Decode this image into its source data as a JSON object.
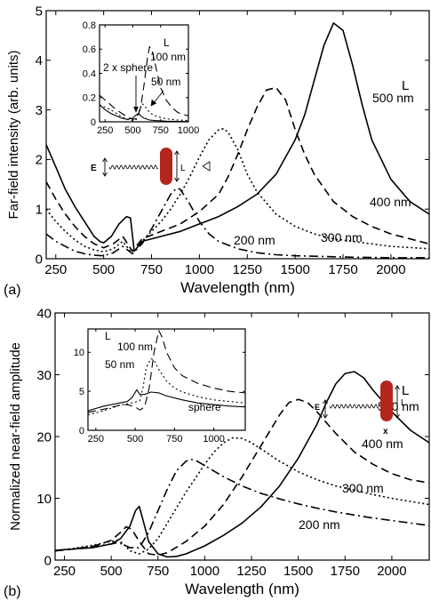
{
  "chart_data": [
    {
      "type": "line",
      "panel_label": "(a)",
      "xlabel": "Wavelength (nm)",
      "ylabel": "Far-field intensity (arb. units)",
      "xlim": [
        200,
        2200
      ],
      "ylim": [
        0,
        5
      ],
      "xticks": [
        "250",
        "500",
        "750",
        "1000",
        "1250",
        "1500",
        "1750",
        "2000"
      ],
      "yticks": [
        "0",
        "1",
        "2",
        "3",
        "4",
        "5"
      ],
      "legend_header": "L",
      "series": [
        {
          "name": "500 nm",
          "style": "solid",
          "x": [
            200,
            250,
            300,
            350,
            400,
            450,
            480,
            500,
            540,
            580,
            620,
            640,
            660,
            700,
            800,
            900,
            1000,
            1100,
            1200,
            1300,
            1400,
            1500,
            1550,
            1600,
            1650,
            1700,
            1750,
            1800,
            1850,
            1900,
            2000,
            2100,
            2200
          ],
          "y": [
            2.3,
            1.85,
            1.4,
            1.05,
            0.75,
            0.45,
            0.35,
            0.32,
            0.45,
            0.7,
            0.85,
            0.82,
            0.15,
            0.35,
            0.45,
            0.55,
            0.7,
            0.85,
            1.05,
            1.3,
            1.7,
            2.4,
            2.9,
            3.6,
            4.3,
            4.75,
            4.6,
            3.9,
            3.1,
            2.4,
            1.6,
            1.15,
            0.9
          ]
        },
        {
          "name": "400 nm",
          "style": "dashed",
          "x": [
            200,
            250,
            300,
            350,
            400,
            450,
            500,
            550,
            600,
            650,
            700,
            800,
            900,
            1000,
            1100,
            1150,
            1200,
            1250,
            1300,
            1350,
            1400,
            1450,
            1500,
            1550,
            1600,
            1700,
            1800,
            1900,
            2000,
            2100,
            2200
          ],
          "y": [
            1.55,
            1.2,
            0.9,
            0.65,
            0.45,
            0.3,
            0.22,
            0.3,
            0.45,
            0.15,
            0.4,
            0.55,
            0.7,
            0.95,
            1.3,
            1.65,
            2.1,
            2.6,
            3.05,
            3.4,
            3.45,
            3.2,
            2.6,
            2.1,
            1.7,
            1.15,
            0.85,
            0.65,
            0.5,
            0.4,
            0.3
          ]
        },
        {
          "name": "300 nm",
          "style": "dotted",
          "x": [
            200,
            250,
            300,
            350,
            400,
            450,
            500,
            550,
            600,
            650,
            700,
            750,
            800,
            850,
            900,
            950,
            1000,
            1050,
            1100,
            1125,
            1150,
            1200,
            1250,
            1300,
            1400,
            1500,
            1600,
            1700,
            1800,
            2000,
            2200
          ],
          "y": [
            1.0,
            0.75,
            0.55,
            0.38,
            0.25,
            0.18,
            0.14,
            0.2,
            0.35,
            0.1,
            0.35,
            0.55,
            0.75,
            1.0,
            1.3,
            1.65,
            2.05,
            2.4,
            2.6,
            2.62,
            2.55,
            2.2,
            1.7,
            1.35,
            0.9,
            0.65,
            0.5,
            0.4,
            0.35,
            0.25,
            0.2
          ]
        },
        {
          "name": "200 nm",
          "style": "dashdot",
          "x": [
            200,
            250,
            300,
            350,
            400,
            450,
            500,
            550,
            600,
            650,
            700,
            750,
            800,
            850,
            880,
            900,
            950,
            1000,
            1050,
            1100,
            1200,
            1300,
            1400,
            1500,
            1600,
            1700,
            1800,
            2000,
            2200
          ],
          "y": [
            0.5,
            0.35,
            0.25,
            0.15,
            0.1,
            0.07,
            0.06,
            0.12,
            0.25,
            0.1,
            0.3,
            0.6,
            0.95,
            1.3,
            1.42,
            1.4,
            1.1,
            0.75,
            0.5,
            0.35,
            0.2,
            0.12,
            0.08,
            0.06,
            0.05,
            0.04,
            0.03,
            0.02,
            0.02
          ]
        }
      ],
      "annotations": {
        "E": "E",
        "L": "L"
      },
      "inset": {
        "xlim": [
          200,
          1000
        ],
        "ylim": [
          0,
          0.8
        ],
        "xticks": [
          "250",
          "500",
          "750",
          "1000"
        ],
        "yticks": [
          "0",
          "0.2",
          "0.4",
          "0.6",
          "0.8"
        ],
        "legend_header": "L",
        "labels": {
          "sphere": "2 x sphere",
          "l100": "100 nm",
          "l50": "50 nm"
        },
        "series": [
          {
            "name": "100 nm",
            "style": "dashed",
            "x": [
              200,
              250,
              300,
              350,
              400,
              450,
              500,
              540,
              570,
              600,
              630,
              650,
              670,
              700,
              750,
              800,
              850,
              900,
              950,
              1000
            ],
            "y": [
              0.22,
              0.18,
              0.14,
              0.1,
              0.07,
              0.04,
              0.02,
              0.03,
              0.12,
              0.3,
              0.52,
              0.62,
              0.6,
              0.48,
              0.28,
              0.18,
              0.12,
              0.08,
              0.06,
              0.05
            ]
          },
          {
            "name": "50 nm",
            "style": "dotted",
            "x": [
              200,
              250,
              300,
              350,
              400,
              450,
              500,
              530,
              560,
              580,
              600,
              630,
              660,
              700,
              750,
              800,
              850,
              900,
              1000
            ],
            "y": [
              0.14,
              0.12,
              0.1,
              0.07,
              0.04,
              0.02,
              0.01,
              0.02,
              0.1,
              0.15,
              0.14,
              0.1,
              0.07,
              0.05,
              0.035,
              0.025,
              0.02,
              0.015,
              0.01
            ]
          },
          {
            "name": "2 x sphere",
            "style": "solid",
            "x": [
              200,
              250,
              300,
              350,
              400,
              450,
              500,
              520,
              550,
              570,
              600,
              650,
              700,
              800,
              900,
              1000
            ],
            "y": [
              0.14,
              0.1,
              0.07,
              0.05,
              0.03,
              0.02,
              0.03,
              0.05,
              0.07,
              0.05,
              0.03,
              0.015,
              0.01,
              0.005,
              0.003,
              0.002
            ]
          }
        ]
      }
    },
    {
      "type": "line",
      "panel_label": "(b)",
      "xlabel": "Wavelength (nm)",
      "ylabel": "Normalized near-field amplitude",
      "xlim": [
        200,
        2200
      ],
      "ylim": [
        0,
        40
      ],
      "xticks": [
        "250",
        "500",
        "750",
        "1000",
        "1250",
        "1500",
        "1750",
        "2000"
      ],
      "yticks": [
        "0",
        "10",
        "20",
        "30",
        "40"
      ],
      "legend_header": "L",
      "series": [
        {
          "name": "500 nm",
          "style": "solid",
          "x": [
            200,
            300,
            400,
            500,
            550,
            600,
            630,
            650,
            670,
            700,
            750,
            800,
            850,
            900,
            1000,
            1100,
            1200,
            1300,
            1400,
            1500,
            1600,
            1650,
            1700,
            1750,
            1800,
            1850,
            1900,
            2000,
            2100,
            2200
          ],
          "y": [
            1.6,
            1.8,
            2.0,
            2.6,
            3.5,
            5.5,
            8.0,
            8.7,
            6.5,
            3.0,
            1.0,
            0.5,
            0.6,
            1.0,
            2.3,
            4.0,
            6.0,
            8.6,
            12,
            16.5,
            22,
            25.5,
            28.5,
            30.2,
            30.5,
            29.5,
            27.5,
            24,
            21,
            19
          ]
        },
        {
          "name": "400 nm",
          "style": "dashed",
          "x": [
            200,
            300,
            400,
            500,
            550,
            580,
            610,
            650,
            700,
            750,
            800,
            900,
            1000,
            1100,
            1200,
            1300,
            1400,
            1450,
            1500,
            1550,
            1600,
            1700,
            1800,
            1900,
            2000,
            2100,
            2200
          ],
          "y": [
            1.5,
            1.8,
            2.2,
            3.2,
            4.5,
            5.4,
            5.0,
            3.0,
            1.0,
            0.8,
            1.2,
            3.0,
            5.5,
            9.0,
            13.5,
            18.5,
            23.5,
            25.5,
            26.0,
            25.5,
            24,
            20.5,
            17.5,
            15.5,
            14,
            13,
            12.5
          ]
        },
        {
          "name": "300 nm",
          "style": "dotted",
          "x": [
            200,
            300,
            400,
            500,
            530,
            560,
            600,
            650,
            700,
            750,
            800,
            900,
            1000,
            1050,
            1100,
            1150,
            1200,
            1250,
            1300,
            1400,
            1500,
            1600,
            1700,
            1800,
            1900,
            2000,
            2100,
            2200
          ],
          "y": [
            1.5,
            1.9,
            2.4,
            3.0,
            3.2,
            2.8,
            1.5,
            1.0,
            1.8,
            3.5,
            6.0,
            11.0,
            15.5,
            17.5,
            19.0,
            19.8,
            19.7,
            19.0,
            18.0,
            16.0,
            14.3,
            13.0,
            12.0,
            11.3,
            10.6,
            10.0,
            9.5,
            9.0
          ]
        },
        {
          "name": "200 nm",
          "style": "dashdot",
          "x": [
            200,
            300,
            400,
            500,
            530,
            560,
            600,
            650,
            700,
            750,
            800,
            850,
            900,
            930,
            960,
            1000,
            1100,
            1200,
            1300,
            1400,
            1500,
            1600,
            1700,
            1800,
            1900,
            2000,
            2100,
            2200
          ],
          "y": [
            1.5,
            1.8,
            2.2,
            2.6,
            2.8,
            2.6,
            2.0,
            2.0,
            4.5,
            8.0,
            11.5,
            14.5,
            16.0,
            16.3,
            16.0,
            15.3,
            13.5,
            12.0,
            10.8,
            9.9,
            9.1,
            8.4,
            7.8,
            7.3,
            6.8,
            6.4,
            6.0,
            5.6
          ]
        }
      ],
      "annotations": {
        "E": "E",
        "L": "L",
        "X": "x"
      },
      "inset": {
        "xlim": [
          200,
          1200
        ],
        "ylim": [
          0,
          13
        ],
        "xticks": [
          "250",
          "500",
          "750",
          "1000"
        ],
        "yticks": [
          "0",
          "5",
          "10"
        ],
        "legend_header": "L",
        "labels": {
          "l100": "100 nm",
          "l50": "50 nm",
          "sphere": "sphere"
        },
        "series": [
          {
            "name": "100 nm",
            "style": "dashed",
            "x": [
              200,
              300,
              400,
              450,
              500,
              530,
              560,
              590,
              620,
              650,
              670,
              700,
              750,
              800,
              900,
              1000,
              1100,
              1200
            ],
            "y": [
              2.3,
              2.7,
              3.2,
              3.3,
              3.0,
              2.6,
              3.0,
              5.5,
              10.0,
              12.8,
              12.0,
              10.0,
              8.0,
              7.0,
              6.0,
              5.4,
              5.0,
              4.8
            ]
          },
          {
            "name": "50 nm",
            "style": "dotted",
            "x": [
              200,
              300,
              400,
              450,
              500,
              530,
              550,
              570,
              600,
              620,
              650,
              700,
              750,
              800,
              900,
              1000,
              1100,
              1200
            ],
            "y": [
              2.0,
              2.5,
              3.2,
              3.4,
              3.6,
              3.8,
              5.5,
              8.0,
              9.2,
              9.0,
              7.8,
              6.3,
              5.4,
              4.9,
              4.3,
              3.9,
              3.7,
              3.5
            ]
          },
          {
            "name": "sphere",
            "style": "solid",
            "x": [
              200,
              300,
              400,
              450,
              480,
              510,
              530,
              560,
              600,
              650,
              700,
              800,
              900,
              1000,
              1100,
              1200
            ],
            "y": [
              2.5,
              3.1,
              3.5,
              3.7,
              4.2,
              5.2,
              4.6,
              4.6,
              4.9,
              4.8,
              4.4,
              3.9,
              3.5,
              3.3,
              3.1,
              3.0
            ]
          }
        ]
      }
    }
  ],
  "colors": {
    "rod": "#b3261e",
    "ink": "#000000"
  }
}
